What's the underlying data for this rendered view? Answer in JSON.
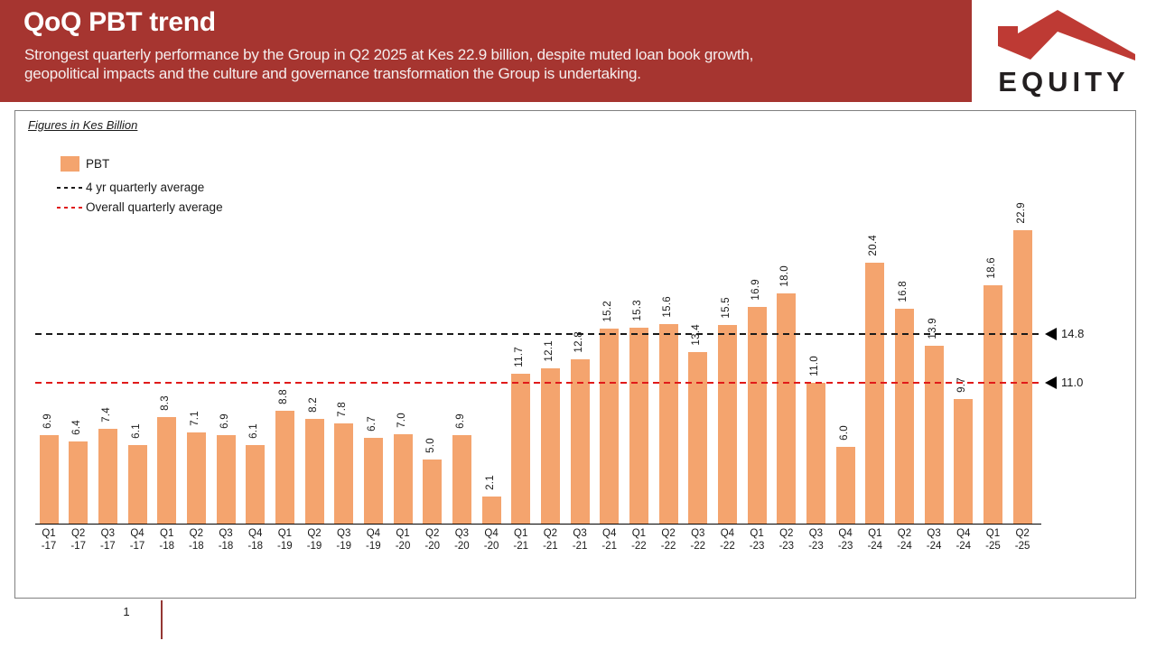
{
  "header": {
    "title": "QoQ PBT trend",
    "subtitle_line1": "Strongest quarterly performance by the Group in Q2 2025 at Kes 22.9 billion, despite muted loan book growth,",
    "subtitle_line2": "geopolitical impacts and the culture and governance transformation the Group is undertaking.",
    "logo_text": "EQUITY"
  },
  "chart_note": "Figures in Kes Billion",
  "legend": {
    "bar_label": "PBT",
    "avg_4yr_label": "4 yr quarterly average",
    "overall_avg_label": "Overall quarterly average"
  },
  "chart_data": {
    "type": "bar",
    "title": "QoQ PBT trend",
    "unit": "Kes Billion",
    "grid": false,
    "ylim": [
      0,
      32.2
    ],
    "categories": [
      "Q1\n-17",
      "Q2\n-17",
      "Q3\n-17",
      "Q4\n-17",
      "Q1\n-18",
      "Q2\n-18",
      "Q3\n-18",
      "Q4\n-18",
      "Q1\n-19",
      "Q2\n-19",
      "Q3\n-19",
      "Q4\n-19",
      "Q1\n-20",
      "Q2\n-20",
      "Q3\n-20",
      "Q4\n-20",
      "Q1\n-21",
      "Q2\n-21",
      "Q3\n-21",
      "Q4\n-21",
      "Q1\n-22",
      "Q2\n-22",
      "Q3\n-22",
      "Q4\n-22",
      "Q1\n-23",
      "Q2\n-23",
      "Q3\n-23",
      "Q4\n-23",
      "Q1\n-24",
      "Q2\n-24",
      "Q3\n-24",
      "Q4\n-24",
      "Q1\n-25",
      "Q2\n-25"
    ],
    "series": [
      {
        "name": "PBT",
        "values": [
          6.9,
          6.4,
          7.4,
          6.1,
          8.3,
          7.1,
          6.9,
          6.1,
          8.8,
          8.2,
          7.8,
          6.7,
          7.0,
          5.0,
          6.9,
          2.1,
          11.7,
          12.1,
          12.8,
          15.2,
          15.3,
          15.6,
          13.4,
          15.5,
          16.9,
          18.0,
          11.0,
          6.0,
          20.4,
          16.8,
          13.9,
          9.7,
          18.6,
          22.9
        ]
      }
    ],
    "reference_lines": [
      {
        "name": "4 yr quarterly average",
        "value": 14.8,
        "label": "14.8",
        "style": "dashed",
        "color": "#1A1A1A"
      },
      {
        "name": "Overall quarterly average",
        "value": 11.0,
        "label": "11.0",
        "style": "dashed",
        "color": "#E01A1A"
      }
    ],
    "legend_position": "top-left"
  },
  "colors": {
    "header_bg": "#A63530",
    "logo_red": "#BE3A34",
    "logo_text": "#231F20",
    "bar_fill": "#F4A46E",
    "ref_4yr": "#1A1A1A",
    "ref_overall": "#E01A1A",
    "footer_line": "#943634",
    "chart_border": "#808080"
  },
  "footer": {
    "page_number": "1"
  }
}
